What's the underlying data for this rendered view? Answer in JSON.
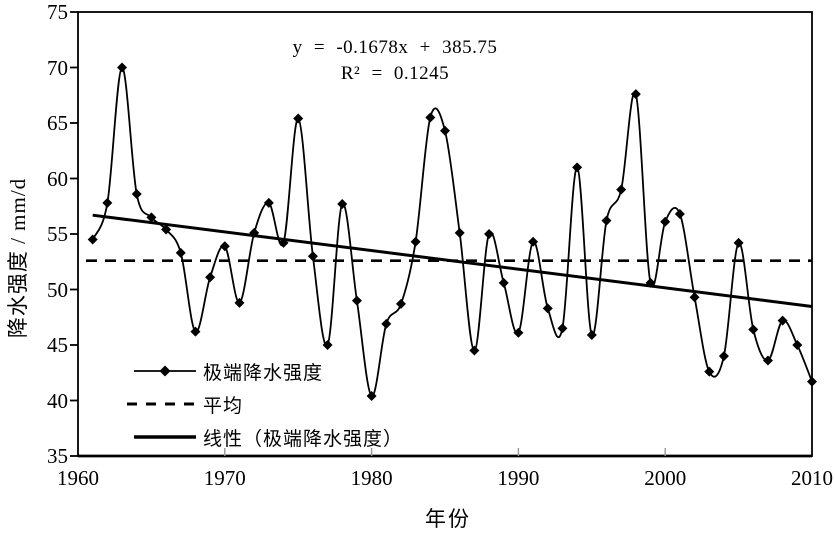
{
  "chart_data": {
    "type": "line",
    "title": "",
    "xlabel": "年份",
    "ylabel": "降水强度 / mm/d",
    "xlim": [
      1960,
      2010
    ],
    "ylim": [
      35,
      75
    ],
    "xticks": [
      1960,
      1970,
      1980,
      1990,
      2000,
      2010
    ],
    "yticks": [
      75,
      70,
      65,
      60,
      55,
      50,
      45,
      40,
      35
    ],
    "grid": false,
    "legend_position": "inside-bottom-left",
    "x": [
      1961,
      1962,
      1963,
      1964,
      1965,
      1966,
      1967,
      1968,
      1969,
      1970,
      1971,
      1972,
      1973,
      1974,
      1975,
      1976,
      1977,
      1978,
      1979,
      1980,
      1981,
      1982,
      1983,
      1984,
      1985,
      1986,
      1987,
      1988,
      1989,
      1990,
      1991,
      1992,
      1993,
      1994,
      1995,
      1996,
      1997,
      1998,
      1999,
      2000,
      2001,
      2002,
      2003,
      2004,
      2005,
      2006,
      2007,
      2008,
      2009,
      2010
    ],
    "series": [
      {
        "name": "极端降水强度",
        "type": "line",
        "marker": "diamond",
        "color": "#000000",
        "values": [
          54.5,
          57.8,
          70.0,
          58.6,
          56.5,
          55.4,
          53.3,
          46.2,
          51.1,
          53.9,
          48.8,
          55.1,
          57.8,
          54.2,
          65.4,
          53.0,
          45.0,
          57.7,
          49.0,
          40.4,
          46.9,
          48.7,
          54.3,
          65.5,
          64.3,
          55.1,
          44.5,
          55.0,
          50.6,
          46.1,
          54.3,
          48.3,
          46.5,
          61.0,
          45.9,
          56.2,
          59.0,
          67.6,
          50.6,
          56.1,
          56.8,
          49.3,
          42.6,
          44.0,
          54.2,
          46.4,
          43.6,
          47.2,
          45.0,
          41.7
        ]
      },
      {
        "name": "平均",
        "type": "constant-line",
        "style": "dashed",
        "color": "#000000",
        "value": 52.6
      },
      {
        "name": "线性（极端降水强度）",
        "type": "trendline",
        "style": "solid-thick",
        "color": "#000000",
        "slope": -0.1678,
        "intercept": 385.75,
        "x_start": 1961,
        "x_end": 2010
      }
    ],
    "annotations": {
      "equation": "y = -0.1678x + 385.75",
      "r_squared": "R² = 0.1245"
    }
  },
  "colors": {
    "foreground": "#000000",
    "background": "#ffffff",
    "minor_tick": "#9a9a9a"
  }
}
